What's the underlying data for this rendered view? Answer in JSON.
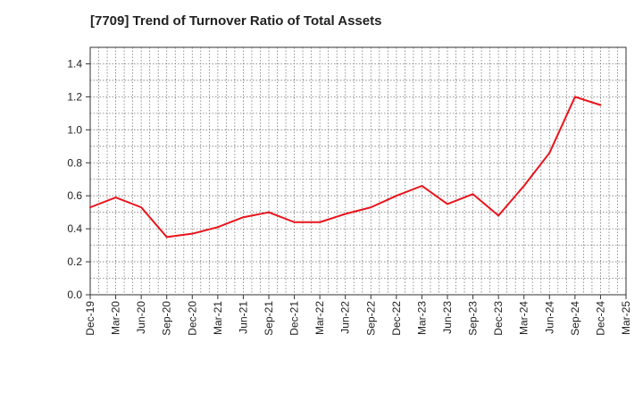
{
  "chart_data": {
    "type": "line",
    "title": "[7709]  Trend of Turnover Ratio of Total Assets",
    "xlabel": "",
    "ylabel": "",
    "x_ticks": [
      "Dec-19",
      "Mar-20",
      "Jun-20",
      "Sep-20",
      "Dec-20",
      "Mar-21",
      "Jun-21",
      "Sep-21",
      "Dec-21",
      "Mar-22",
      "Jun-22",
      "Sep-22",
      "Dec-22",
      "Mar-23",
      "Jun-23",
      "Sep-23",
      "Dec-23",
      "Mar-24",
      "Jun-24",
      "Sep-24",
      "Dec-24",
      "Mar-25"
    ],
    "y_ticks": [
      "0.0",
      "0.2",
      "0.4",
      "0.6",
      "0.8",
      "1.0",
      "1.2",
      "1.4"
    ],
    "ylim": [
      0,
      1.5
    ],
    "grid": true,
    "series": [
      {
        "color": "#e8141c",
        "x": [
          "Dec-19",
          "Mar-20",
          "Jun-20",
          "Sep-20",
          "Dec-20",
          "Mar-21",
          "Jun-21",
          "Sep-21",
          "Dec-21",
          "Mar-22",
          "Jun-22",
          "Sep-22",
          "Dec-22",
          "Mar-23",
          "Jun-23",
          "Sep-23",
          "Dec-23",
          "Mar-24",
          "Jun-24",
          "Sep-24",
          "Dec-24"
        ],
        "values": [
          0.53,
          0.59,
          0.53,
          0.35,
          0.37,
          0.41,
          0.47,
          0.5,
          0.44,
          0.44,
          0.49,
          0.53,
          0.6,
          0.66,
          0.55,
          0.61,
          0.48,
          0.66,
          0.86,
          1.2,
          1.15
        ]
      }
    ]
  }
}
